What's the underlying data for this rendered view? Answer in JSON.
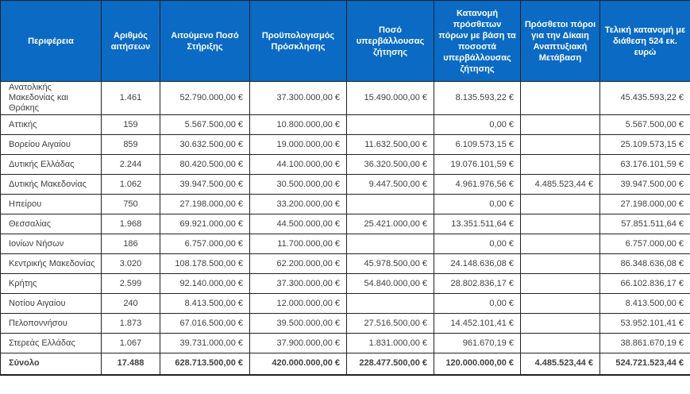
{
  "table": {
    "colors": {
      "header_bg": "#0a6ac4",
      "header_text": "#ffffff",
      "body_text": "#3f3f3f",
      "border": "#222222"
    },
    "columns": [
      "Περιφέρεια",
      "Αριθμός αιτήσεων",
      "Αιτούμενο Ποσό Στήριξης",
      "Προϋπολογισμός Πρόσκλησης",
      "Ποσό υπερβάλλουσας ζήτησης",
      "Κατανομή πρόσθετων πόρων με βάση τα ποσοστά υπερβάλλουσας ζήτησης",
      "Πρόσθετοι πόροι για την Δίκαιη Αναπτυξιακή Μετάβαση",
      "Τελική κατανομή με διάθεση 524 εκ. ευρώ"
    ],
    "rows": [
      [
        "Ανατολικής Μακεδονίας και Θράκης",
        "1.461",
        "52.790.000,00 €",
        "37.300.000,00 €",
        "15.490.000,00 €",
        "8.135.593,22 €",
        "",
        "45.435.593,22 €"
      ],
      [
        "Αττικής",
        "159",
        "5.567.500,00 €",
        "10.800.000,00 €",
        "",
        "0,00 €",
        "",
        "5.567.500,00 €"
      ],
      [
        "Βορείου Αιγαίου",
        "859",
        "30.632.500,00 €",
        "19.000.000,00 €",
        "11.632.500,00 €",
        "6.109.573,15 €",
        "",
        "25.109.573,15 €"
      ],
      [
        "Δυτικής Ελλάδας",
        "2.244",
        "80.420.500,00 €",
        "44.100.000,00 €",
        "36.320.500,00 €",
        "19.076.101,59 €",
        "",
        "63.176.101,59 €"
      ],
      [
        "Δυτικής Μακεδονίας",
        "1.062",
        "39.947.500,00 €",
        "30.500.000,00 €",
        "9.447.500,00 €",
        "4.961.976,56 €",
        "4.485.523,44 €",
        "39.947.500,00 €"
      ],
      [
        "Ηπείρου",
        "750",
        "27.198.000,00 €",
        "33.200.000,00 €",
        "",
        "0,00 €",
        "",
        "27.198.000,00 €"
      ],
      [
        "Θεσσαλίας",
        "1.968",
        "69.921.000,00 €",
        "44.500.000,00 €",
        "25.421.000,00 €",
        "13.351.511,64 €",
        "",
        "57.851.511,64 €"
      ],
      [
        "Ιονίων Νήσων",
        "186",
        "6.757.000,00 €",
        "11.700.000,00 €",
        "",
        "0,00 €",
        "",
        "6.757.000,00 €"
      ],
      [
        "Κεντρικής Μακεδονίας",
        "3.020",
        "108.178.500,00 €",
        "62.200.000,00 €",
        "45.978.500,00 €",
        "24.148.636,08 €",
        "",
        "86.348.636,08 €"
      ],
      [
        "Κρήτης",
        "2.599",
        "92.140.000,00 €",
        "37.300.000,00 €",
        "54.840.000,00 €",
        "28.802.836,17 €",
        "",
        "66.102.836,17 €"
      ],
      [
        "Νοτίου Αιγαίου",
        "240",
        "8.413.500,00 €",
        "12.000.000,00 €",
        "",
        "0,00 €",
        "",
        "8.413.500,00 €"
      ],
      [
        "Πελοποννήσου",
        "1.873",
        "67.016.500,00 €",
        "39.500.000,00 €",
        "27.516.500,00 €",
        "14.452.101,41 €",
        "",
        "53.952.101,41 €"
      ],
      [
        "Στερεάς Ελλάδας",
        "1.067",
        "39.731.000,00 €",
        "37.900.000,00 €",
        "1.831.000,00 €",
        "961.670,19 €",
        "",
        "38.861.670,19 €"
      ]
    ],
    "total": [
      "Σύνολο",
      "17.488",
      "628.713.500,00 €",
      "420.000.000,00 €",
      "228.477.500,00 €",
      "120.000.000,00 €",
      "4.485.523,44 €",
      "524.721.523,44 €"
    ]
  }
}
